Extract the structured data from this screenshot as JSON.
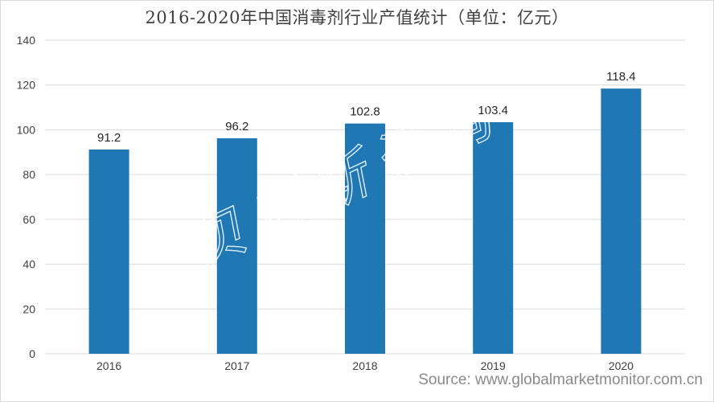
{
  "title": "2016-2020年中国消毒剂行业产值统计（单位：亿元）",
  "source": "Source: www.globalmarketmonitor.com.cn",
  "watermark": "贝哲斯咨询",
  "colors": {
    "bar": "#1f77b4",
    "grid": "#d9d9d9",
    "text": "#404040"
  },
  "chart_data": {
    "type": "bar",
    "title": "2016-2020年中国消毒剂行业产值统计（单位：亿元）",
    "xlabel": "",
    "ylabel": "",
    "categories": [
      "2016",
      "2017",
      "2018",
      "2019",
      "2020"
    ],
    "values": [
      91.2,
      96.2,
      102.8,
      103.4,
      118.4
    ],
    "value_labels": [
      "91.2",
      "96.2",
      "102.8",
      "103.4",
      "118.4"
    ],
    "ylim": [
      0,
      140
    ],
    "yticks": [
      0,
      20,
      40,
      60,
      80,
      100,
      120,
      140
    ],
    "grid": true,
    "legend": "none"
  }
}
